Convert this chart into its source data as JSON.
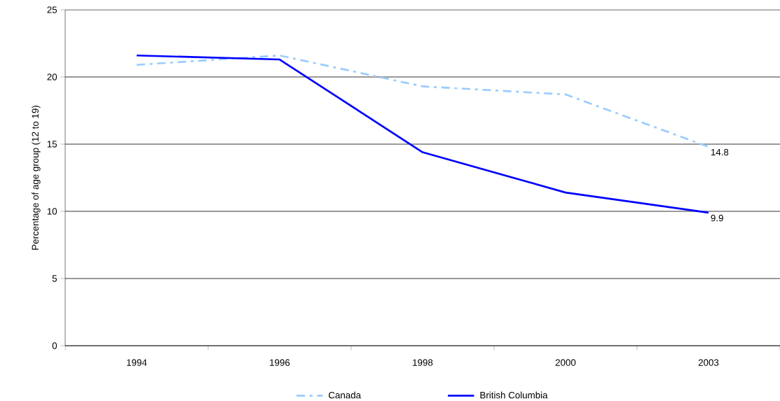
{
  "chart_data": {
    "type": "line",
    "ylabel": "Percentage of age group (12 to 19)",
    "categories": [
      "1994",
      "1996",
      "1998",
      "2000",
      "2003"
    ],
    "series": [
      {
        "name": "Canada",
        "color": "#99ccff",
        "line_style": "dashed",
        "values": [
          20.9,
          21.6,
          19.3,
          18.7,
          14.8
        ],
        "value_labels": [
          null,
          null,
          null,
          null,
          "14.8"
        ]
      },
      {
        "name": "British Columbia",
        "color": "#0000ff",
        "line_style": "solid",
        "values": [
          21.6,
          21.3,
          14.4,
          11.4,
          9.9
        ],
        "value_labels": [
          null,
          null,
          null,
          null,
          "9.9"
        ]
      }
    ],
    "ylim": [
      0,
      25
    ],
    "yticks": [
      0,
      5,
      10,
      15,
      20,
      25
    ],
    "grid": "y",
    "legend": "bottom",
    "marker": "none"
  }
}
